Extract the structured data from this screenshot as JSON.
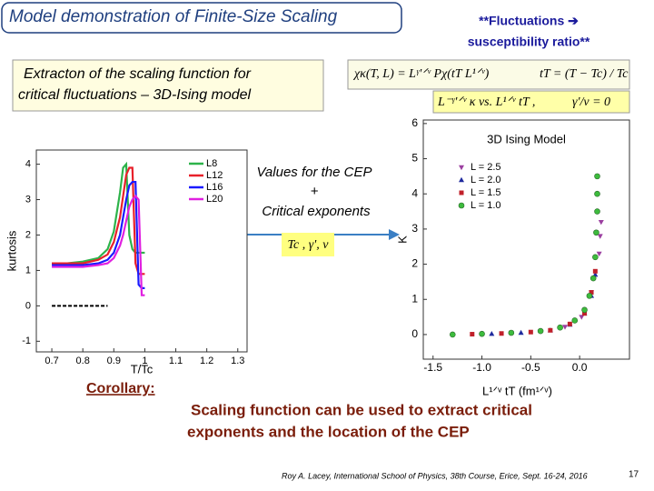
{
  "header": {
    "title": "Model demonstration of Finite-Size Scaling",
    "note_line1": "**Fluctuations ➔",
    "note_line2": "susceptibility ratio**"
  },
  "intro": [
    "Extracton of the scaling function for",
    "critical fluctuations –  3D-Ising model"
  ],
  "formulas": [
    "χκ(T, L) = Lᵞ'ᐟᵛ Pχ(tT L¹ᐟᵛ)",
    "tT = (T − Tc) / Tc",
    "L⁻ᵞ'ᐟᵛ κ   vs.   L¹ᐟᵛ tT ,",
    "γ'/ν = 0"
  ],
  "cep_box": {
    "lines": [
      "Values for the CEP",
      "+",
      "Critical exponents"
    ],
    "formula": "Tc , γ', ν"
  },
  "charts": [
    {
      "type": "line",
      "y_label": "kurtosis",
      "x_label": "T/Tc",
      "x": [
        0.7,
        0.75,
        0.8,
        0.85,
        0.88,
        0.9,
        0.92,
        0.93,
        0.94,
        0.95,
        0.96,
        0.97,
        0.98,
        0.99,
        1.0
      ],
      "series": [
        {
          "color": "#000000",
          "dashed": true,
          "values": [
            0,
            0,
            0,
            0,
            0,
            null,
            null,
            null,
            null,
            null,
            null,
            null,
            null,
            null,
            null
          ]
        },
        {
          "name": "L8",
          "color": "#2db34a",
          "values": [
            1.2,
            1.2,
            1.25,
            1.35,
            1.6,
            2.1,
            3.2,
            3.9,
            4.0,
            2.0,
            1.6,
            1.5,
            1.5,
            1.5,
            1.5
          ]
        },
        {
          "name": "L12",
          "color": "#e8202a",
          "values": [
            1.2,
            1.2,
            1.2,
            1.3,
            1.45,
            1.8,
            2.5,
            3.1,
            3.7,
            3.9,
            3.9,
            1.2,
            0.9,
            0.9,
            0.9
          ]
        },
        {
          "name": "L16",
          "color": "#1a1aff",
          "values": [
            1.15,
            1.15,
            1.15,
            1.2,
            1.3,
            1.5,
            2.0,
            2.5,
            3.0,
            3.4,
            3.5,
            3.5,
            0.6,
            0.5,
            0.5
          ]
        },
        {
          "name": "L20",
          "color": "#e020e0",
          "values": [
            1.1,
            1.1,
            1.1,
            1.15,
            1.2,
            1.35,
            1.7,
            2.0,
            2.4,
            2.8,
            3.0,
            3.1,
            3.0,
            0.3,
            0.3
          ]
        }
      ],
      "xlim": [
        0.65,
        1.33
      ],
      "ylim": [
        -1.3,
        4.4
      ],
      "xticks": [
        0.7,
        0.8,
        0.9,
        1,
        1.1,
        1.2,
        1.3
      ],
      "yticks": [
        -1,
        0,
        1,
        2,
        3,
        4
      ]
    },
    {
      "type": "scatter",
      "title": "3D Ising Model",
      "y_label": "K",
      "x_label": "L¹ᐟᵛ tT (fm¹ᐟᵛ)",
      "series": [
        {
          "name": "L = 2.5",
          "color": "#9b3fa0",
          "marker": "triangle-down",
          "x": [
            -0.7,
            -0.4,
            -0.15,
            0.02,
            0.12,
            0.2,
            0.21,
            0.22
          ],
          "values": [
            0.04,
            0.09,
            0.22,
            0.5,
            1.2,
            2.3,
            2.8,
            3.2
          ]
        },
        {
          "name": "L = 2.0",
          "color": "#1f2a9e",
          "marker": "triangle-up",
          "x": [
            -0.9,
            -0.6,
            -0.3,
            -0.1,
            0.05,
            0.12,
            0.16
          ],
          "values": [
            0.02,
            0.05,
            0.12,
            0.28,
            0.6,
            1.1,
            1.7
          ]
        },
        {
          "name": "L = 1.5",
          "color": "#c0202a",
          "marker": "square",
          "x": [
            -1.1,
            -0.8,
            -0.5,
            -0.3,
            -0.1,
            0.05,
            0.12,
            0.16
          ],
          "values": [
            0.01,
            0.03,
            0.07,
            0.12,
            0.3,
            0.6,
            1.2,
            1.8
          ]
        },
        {
          "name": "L = 1.0",
          "color": "#3dbb3d",
          "marker": "circle",
          "x": [
            -1.3,
            -1.0,
            -0.7,
            -0.4,
            -0.2,
            -0.05,
            0.05,
            0.1,
            0.14,
            0.16,
            0.17,
            0.18,
            0.18,
            0.18
          ],
          "values": [
            0.0,
            0.02,
            0.05,
            0.1,
            0.2,
            0.4,
            0.7,
            1.1,
            1.6,
            2.2,
            2.9,
            3.5,
            4.0,
            4.5
          ]
        }
      ],
      "xlim": [
        -1.6,
        0.51
      ],
      "ylim": [
        -0.7,
        6.1
      ],
      "xticks": [
        -1.5,
        {
          "value": -1,
          "label": "-1.0"
        },
        -0.5,
        {
          "value": 0,
          "label": "0.0"
        }
      ],
      "yticks": [
        0,
        1,
        2,
        3,
        4,
        5,
        6
      ]
    }
  ],
  "corollary": {
    "label": "Corollary:",
    "lines": [
      "Scaling function can be used to extract critical",
      "exponents and the location of the CEP"
    ]
  },
  "footer": {
    "citation": "Roy A. Lacey, International School of Physics, 38th Course, Erice, Sept. 16-24, 2016",
    "page": 17
  }
}
